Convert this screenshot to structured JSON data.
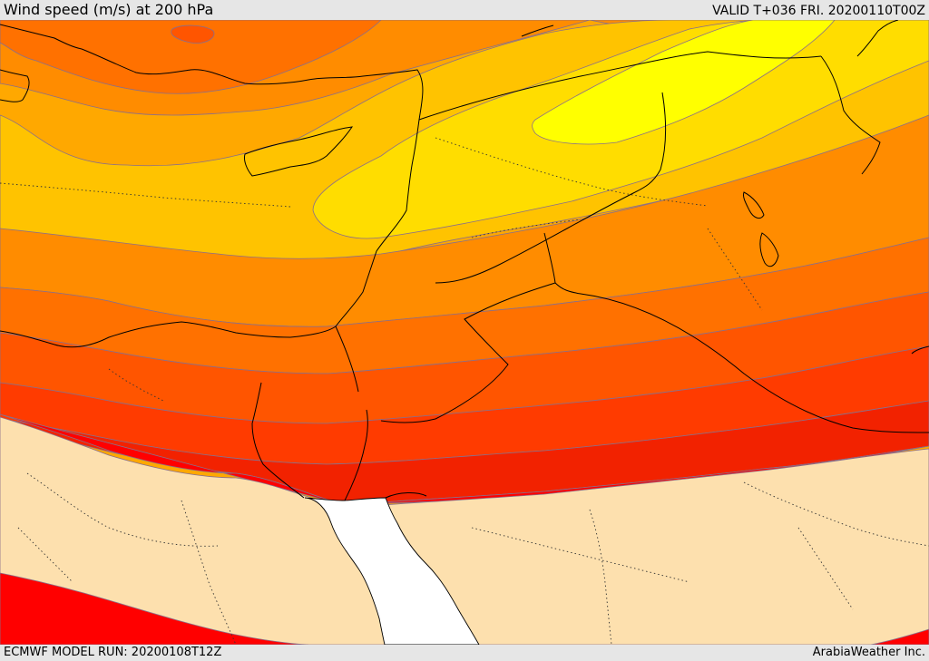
{
  "header": {
    "title": "Wind speed (m/s) at 200 hPa",
    "valid": "VALID T+036 FRI. 20200110T00Z"
  },
  "footer": {
    "model_run": "ECMWF MODEL RUN: 20200108T12Z",
    "credit": "ArabiaWeather Inc."
  },
  "map": {
    "variable": "wind speed",
    "level": "200 hPa",
    "units": "m/s",
    "region": "Eastern Mediterranean / Middle East",
    "colors": {
      "calm": "#fde0ae",
      "band_1": "#ff0000",
      "band_2": "#f22200",
      "band_3": "#ff3b00",
      "band_4": "#ff5500",
      "band_5": "#ff7100",
      "band_6": "#ff8c00",
      "band_7": "#ffa800",
      "band_8": "#ffc300",
      "band_9": "#ffdd00",
      "band_10": "#ffff00",
      "sea_white": "#ffffff",
      "contour_line": "#7a6fa0",
      "coastline": "#000000",
      "border": "#000000"
    }
  }
}
